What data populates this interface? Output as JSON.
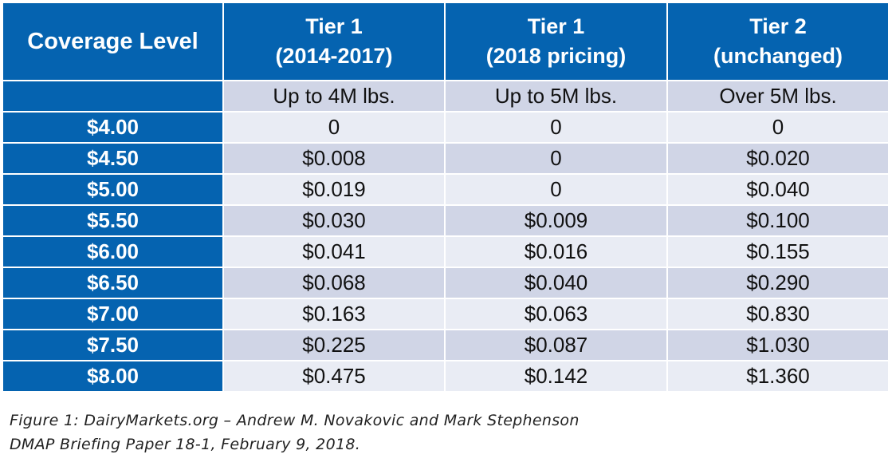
{
  "table": {
    "header": {
      "coverage": "Coverage Level",
      "col1": [
        "Tier 1",
        "(2014-2017)"
      ],
      "col2": [
        "Tier 1",
        "(2018 pricing)"
      ],
      "col3": [
        "Tier 2",
        "(unchanged)"
      ]
    },
    "subheader": [
      "Up to 4M lbs.",
      "Up to 5M lbs.",
      "Over 5M lbs."
    ],
    "rows": [
      {
        "level": "$4.00",
        "values": [
          "0",
          "0",
          "0"
        ]
      },
      {
        "level": "$4.50",
        "values": [
          "$0.008",
          "0",
          "$0.020"
        ]
      },
      {
        "level": "$5.00",
        "values": [
          "$0.019",
          "0",
          "$0.040"
        ]
      },
      {
        "level": "$5.50",
        "values": [
          "$0.030",
          "$0.009",
          "$0.100"
        ]
      },
      {
        "level": "$6.00",
        "values": [
          "$0.041",
          "$0.016",
          "$0.155"
        ]
      },
      {
        "level": "$6.50",
        "values": [
          "$0.068",
          "$0.040",
          "$0.290"
        ]
      },
      {
        "level": "$7.00",
        "values": [
          "$0.163",
          "$0.063",
          "$0.830"
        ]
      },
      {
        "level": "$7.50",
        "values": [
          "$0.225",
          "$0.087",
          "$1.030"
        ]
      },
      {
        "level": "$8.00",
        "values": [
          "$0.475",
          "$0.142",
          "$1.360"
        ]
      }
    ]
  },
  "caption": {
    "line1": "Figure 1: DairyMarkets.org – Andrew M. Novakovic and Mark Stephenson",
    "line2": "DMAP Briefing Paper 18-1, February 9, 2018."
  },
  "colors": {
    "header_blue": "#0563b0",
    "row_shade_dark": "#d0d5e6",
    "row_shade_light": "#e9ecf4"
  }
}
